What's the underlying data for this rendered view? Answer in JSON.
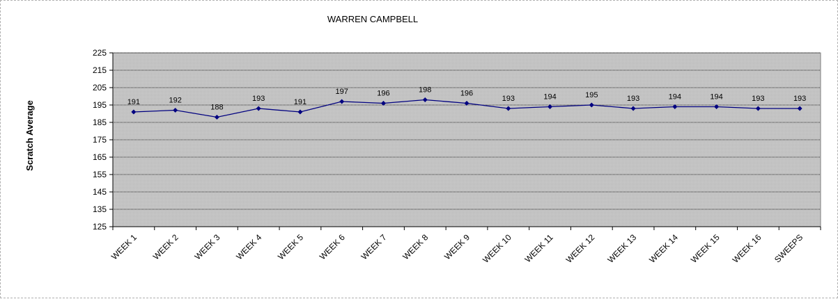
{
  "chart_data": {
    "type": "line",
    "title": "WARREN CAMPBELL",
    "xlabel": "",
    "ylabel": "Scratch Average",
    "categories": [
      "WEEK 1",
      "WEEK 2",
      "WEEK 3",
      "WEEK 4",
      "WEEK 5",
      "WEEK 6",
      "WEEK 7",
      "WEEK 8",
      "WEEK 9",
      "WEEK 10",
      "WEEK 11",
      "WEEK 12",
      "WEEK 13",
      "WEEK 14",
      "WEEK 15",
      "WEEK 16",
      "SWEEPS"
    ],
    "series": [
      {
        "values": [
          191,
          192,
          188,
          193,
          191,
          197,
          196,
          198,
          196,
          193,
          194,
          195,
          193,
          194,
          194,
          193,
          193
        ]
      }
    ],
    "ylim": [
      125,
      225
    ],
    "yticks": [
      125,
      135,
      145,
      155,
      165,
      175,
      185,
      195,
      205,
      215,
      225
    ],
    "grid": true,
    "legend": "none",
    "colors": {
      "line": "#000080",
      "plot_bg": "#c0c0c0",
      "grid": "#000000"
    }
  }
}
